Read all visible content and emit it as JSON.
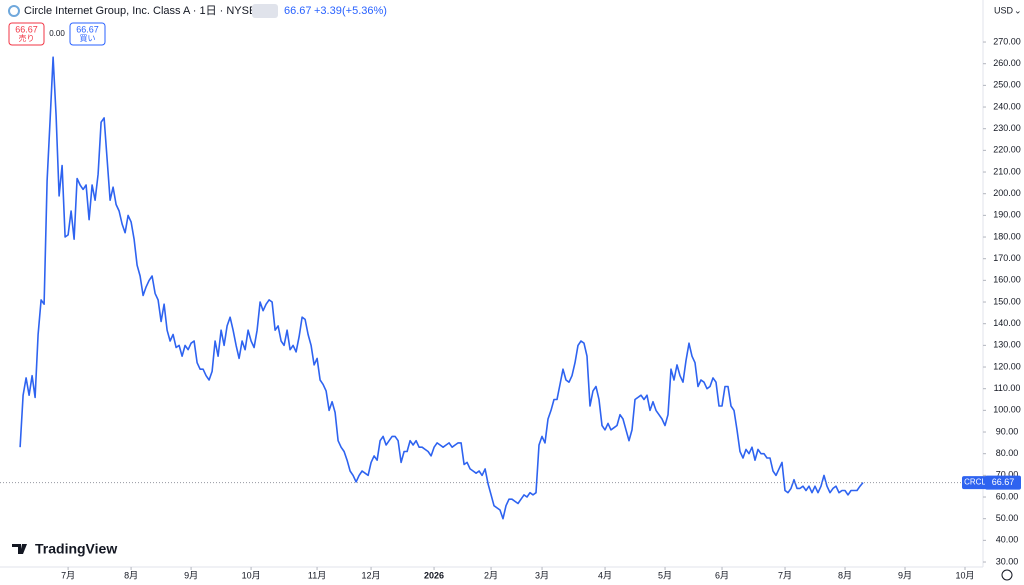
{
  "header": {
    "title": "Circle Internet Group, Inc. Class A · 1日 · NYSE",
    "last": 66.67,
    "change": "+3.39",
    "change_pct": "(+5.36%)",
    "sell_price": "66.67",
    "sell_label": "売り",
    "spread": "0.00",
    "buy_price": "66.67",
    "buy_label": "買い",
    "currency": "USD",
    "brand": "TradingView"
  },
  "chart_data": {
    "type": "line",
    "symbol": "CRCL",
    "last_price": 66.67,
    "series": [
      {
        "name": "CRCL",
        "color": "#2e63f0",
        "values": [
          83,
          107,
          115,
          107,
          116,
          106,
          135,
          151,
          149,
          206,
          234,
          263,
          236,
          199,
          213,
          180,
          181,
          192,
          179,
          207,
          204,
          202,
          204,
          188,
          204,
          197,
          209,
          233,
          235,
          216,
          197,
          203,
          195,
          192,
          186,
          182,
          190,
          187,
          179,
          167,
          162,
          153,
          157,
          160,
          162,
          154,
          151,
          141,
          149,
          137,
          132,
          135,
          129,
          130,
          125,
          130,
          128,
          131,
          132,
          122,
          119,
          119,
          116,
          114,
          118,
          132,
          125,
          137,
          130,
          139,
          143,
          137,
          130,
          124,
          132,
          128,
          137,
          132,
          129,
          137,
          150,
          146,
          149,
          151,
          150,
          137,
          139,
          132,
          130,
          137,
          128,
          130,
          127,
          134,
          143,
          142,
          135,
          130,
          121,
          124,
          114,
          112,
          109,
          100,
          104,
          99,
          86,
          83,
          81,
          77,
          72,
          70,
          67,
          70,
          72,
          71,
          70,
          76,
          79,
          77,
          86,
          88,
          84,
          86,
          88,
          88,
          86,
          76,
          81,
          81,
          86,
          84,
          86,
          83,
          83,
          82,
          81,
          79,
          83,
          85,
          84,
          83,
          84,
          85,
          83,
          84,
          85,
          85,
          75,
          76,
          73,
          72,
          71,
          72,
          70,
          73,
          66,
          61,
          56,
          55,
          54,
          50,
          56,
          59,
          59,
          58,
          57,
          59,
          61,
          60,
          62,
          61,
          62,
          84,
          88,
          85,
          96,
          100,
          105,
          105,
          112,
          119,
          114,
          113,
          116,
          122,
          130,
          132,
          131,
          125,
          102,
          109,
          111,
          105,
          93,
          91,
          94,
          91,
          92,
          93,
          98,
          96,
          91,
          86,
          91,
          105,
          106,
          107,
          105,
          107,
          100,
          104,
          100,
          98,
          96,
          93,
          98,
          119,
          114,
          121,
          116,
          113,
          123,
          131,
          125,
          122,
          111,
          114,
          113,
          110,
          111,
          115,
          113,
          102,
          102,
          111,
          111,
          102,
          100,
          91,
          81,
          78,
          82,
          80,
          83,
          77,
          82,
          80,
          80,
          78,
          78,
          72,
          70,
          73,
          76,
          63,
          62,
          64,
          68,
          64,
          64,
          65,
          63,
          65,
          62,
          65,
          62,
          65,
          70,
          65,
          62,
          64,
          65,
          62,
          63,
          63,
          61,
          63,
          63,
          63,
          65,
          66.67
        ]
      }
    ],
    "xlim": [
      -6.7,
      321
    ],
    "ylim": [
      27.7,
      289.4
    ],
    "xticks": [
      {
        "value": 16,
        "label": "7月"
      },
      {
        "value": 37,
        "label": "8月"
      },
      {
        "value": 57,
        "label": "9月"
      },
      {
        "value": 77,
        "label": "10月"
      },
      {
        "value": 99,
        "label": "11月"
      },
      {
        "value": 117,
        "label": "12月"
      },
      {
        "value": 138,
        "label": "2026"
      },
      {
        "value": 157,
        "label": "2月"
      },
      {
        "value": 174,
        "label": "3月"
      },
      {
        "value": 195,
        "label": "4月"
      },
      {
        "value": 215,
        "label": "5月"
      },
      {
        "value": 234,
        "label": "6月"
      },
      {
        "value": 255,
        "label": "7月"
      },
      {
        "value": 275,
        "label": "8月"
      },
      {
        "value": 295,
        "label": "9月"
      },
      {
        "value": 315,
        "label": "10月"
      }
    ],
    "yticks": [
      {
        "value": 30,
        "label": "30.00"
      },
      {
        "value": 40,
        "label": "40.00"
      },
      {
        "value": 50,
        "label": "50.00"
      },
      {
        "value": 60,
        "label": "60.00"
      },
      {
        "value": 70,
        "label": "70.00"
      },
      {
        "value": 80,
        "label": "80.00"
      },
      {
        "value": 90,
        "label": "90.00"
      },
      {
        "value": 100,
        "label": "100.00"
      },
      {
        "value": 110,
        "label": "110.00"
      },
      {
        "value": 120,
        "label": "120.00"
      },
      {
        "value": 130,
        "label": "130.00"
      },
      {
        "value": 140,
        "label": "140.00"
      },
      {
        "value": 150,
        "label": "150.00"
      },
      {
        "value": 160,
        "label": "160.00"
      },
      {
        "value": 170,
        "label": "170.00"
      },
      {
        "value": 180,
        "label": "180.00"
      },
      {
        "value": 190,
        "label": "190.00"
      },
      {
        "value": 200,
        "label": "200.00"
      },
      {
        "value": 210,
        "label": "210.00"
      },
      {
        "value": 220,
        "label": "220.00"
      },
      {
        "value": 230,
        "label": "230.00"
      },
      {
        "value": 240,
        "label": "240.00"
      },
      {
        "value": 250,
        "label": "250.00"
      },
      {
        "value": 260,
        "label": "260.00"
      },
      {
        "value": 270,
        "label": "270.00"
      }
    ],
    "grid": false
  }
}
